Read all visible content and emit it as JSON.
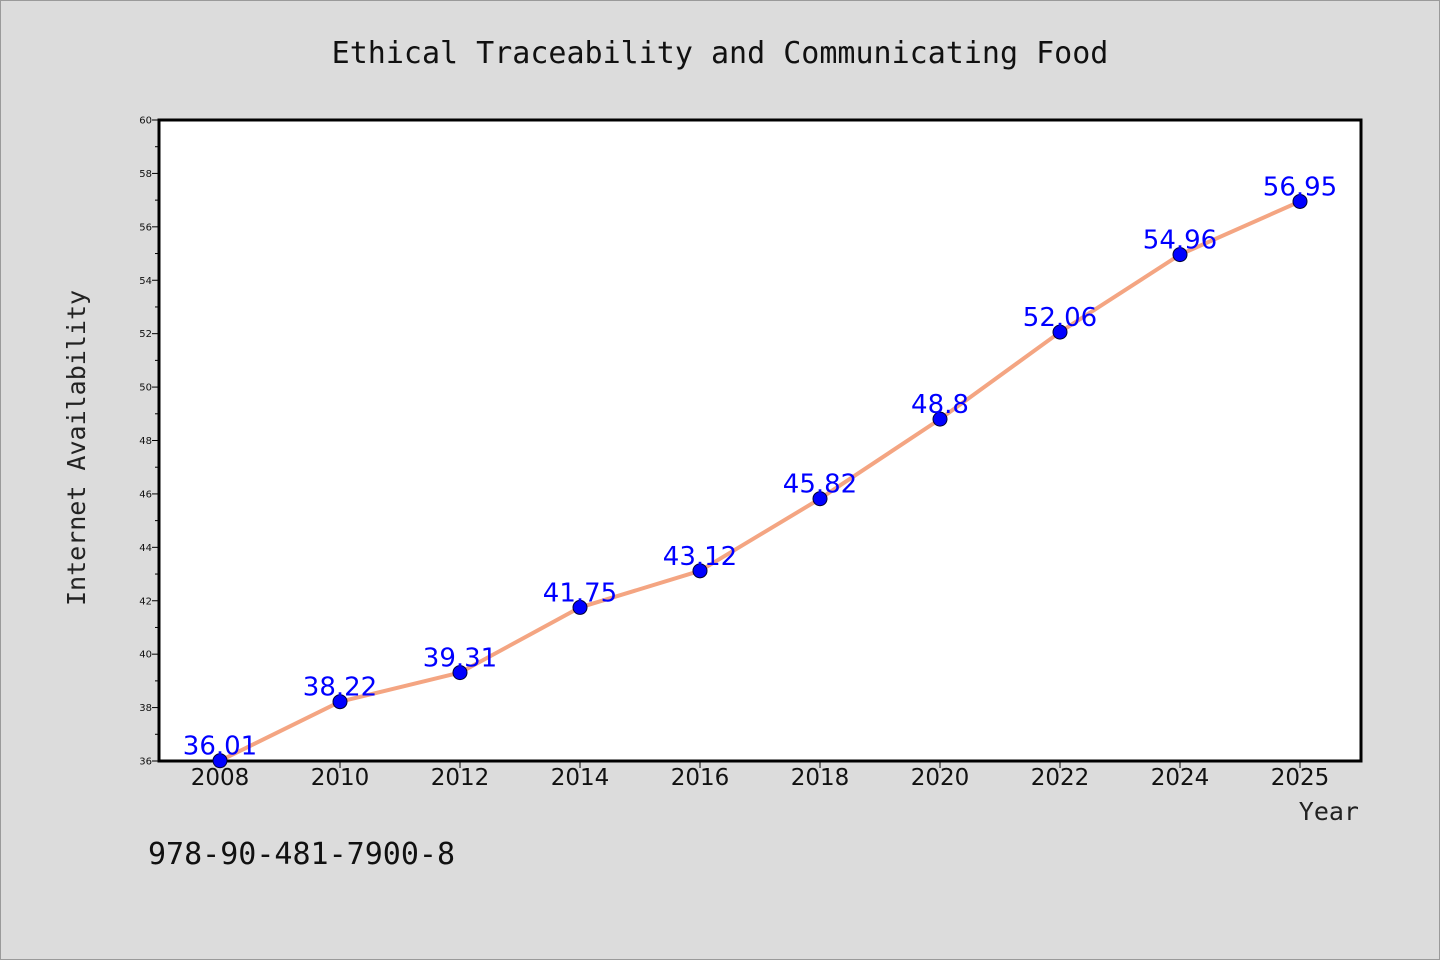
{
  "chart_data": {
    "type": "line",
    "title": "Ethical Traceability and Communicating Food",
    "xlabel": "Year",
    "ylabel": "Internet Availability",
    "x": [
      2008,
      2010,
      2012,
      2014,
      2016,
      2018,
      2020,
      2022,
      2024,
      2025
    ],
    "x_tick_labels": [
      "2008",
      "2010",
      "2012",
      "2014",
      "2016",
      "2018",
      "2020",
      "2022",
      "2024",
      "2025"
    ],
    "series": [
      {
        "values": [
          36.01,
          38.22,
          39.31,
          41.75,
          43.12,
          45.82,
          48.8,
          52.06,
          54.96,
          56.95
        ],
        "data_labels": [
          "36.01",
          "38.22",
          "39.31",
          "41.75",
          "43.12",
          "45.82",
          "48.8",
          "52.06",
          "54.96",
          "56.95"
        ]
      }
    ],
    "ylim": [
      36,
      60
    ],
    "y_ticks": [
      36,
      38,
      40,
      42,
      44,
      46,
      48,
      50,
      52,
      54,
      56,
      58,
      60
    ],
    "y_tick_labels": [
      "36",
      "38",
      "40",
      "42",
      "44",
      "46",
      "48",
      "50",
      "52",
      "54",
      "56",
      "58",
      "60"
    ],
    "grid": false,
    "colors": {
      "page_background": "#dcdcdc",
      "plot_background": "#ffffff",
      "line": "#f4a582",
      "marker": "#0000ff",
      "data_label": "#0000ff"
    }
  },
  "footer": {
    "code": "978-90-481-7900-8"
  }
}
